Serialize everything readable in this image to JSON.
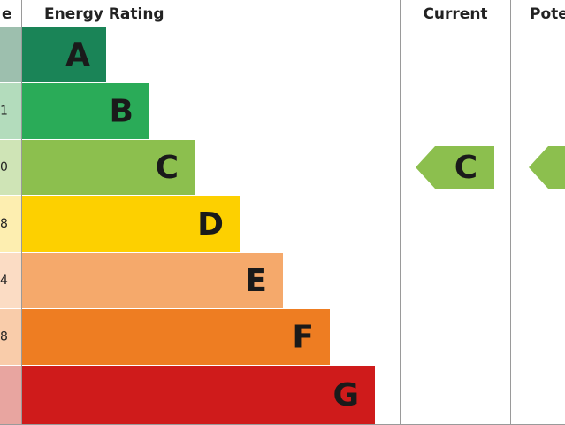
{
  "header": {
    "score": "e",
    "rating": "Energy Rating",
    "current": "Current",
    "potential": "Pote"
  },
  "rows": [
    {
      "band": "A",
      "color": "#1a8457",
      "tint": "#9dbfae"
    },
    {
      "band": "B",
      "score": "1",
      "color": "#2aab58",
      "tint": "#b3dcbc"
    },
    {
      "band": "C",
      "score": "0",
      "color": "#8cbf4e",
      "tint": "#cfe4b6"
    },
    {
      "band": "D",
      "score": "8",
      "color": "#fdd000",
      "tint": "#fdeeb0"
    },
    {
      "band": "E",
      "score": "4",
      "color": "#f5a96b",
      "tint": "#fbdcc4"
    },
    {
      "band": "F",
      "score": "8",
      "color": "#ee7d22",
      "tint": "#f9ccaa"
    },
    {
      "band": "G",
      "color": "#cf1b1b",
      "tint": "#e8a5a0"
    }
  ],
  "current": {
    "band": "C",
    "color": "#8cbf4e"
  },
  "potential": {
    "color": "#8cbf4e"
  }
}
